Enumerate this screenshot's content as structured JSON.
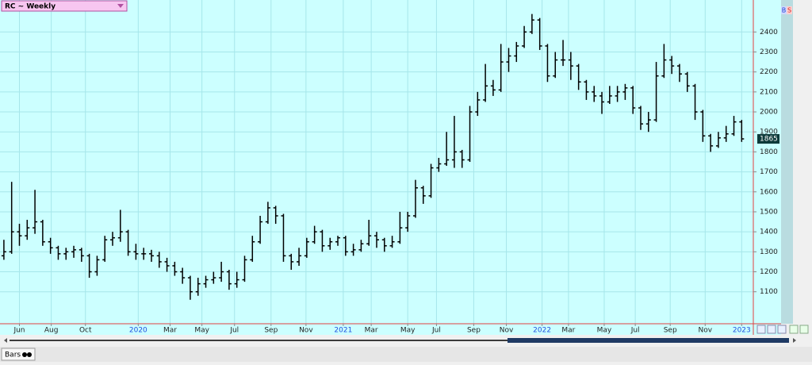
{
  "chart_data": {
    "type": "ohlc",
    "title": "RC ~ Weekly",
    "color": "#000000",
    "grid": true,
    "open": [
      1280,
      1300,
      1400,
      1380,
      1420,
      1450,
      1350,
      1320,
      1290,
      1300,
      1310,
      1280,
      1200,
      1260,
      1360,
      1370,
      1400,
      1300,
      1290,
      1290,
      1280,
      1250,
      1230,
      1200,
      1170,
      1100,
      1140,
      1160,
      1170,
      1200,
      1140,
      1160,
      1260,
      1350,
      1450,
      1520,
      1480,
      1280,
      1250,
      1280,
      1350,
      1400,
      1330,
      1350,
      1370,
      1300,
      1310,
      1340,
      1380,
      1360,
      1330,
      1350,
      1420,
      1480,
      1620,
      1580,
      1720,
      1740,
      1760,
      1800,
      1760,
      2000,
      2060,
      2130,
      2110,
      2250,
      2280,
      2330,
      2400,
      2460,
      2330,
      2180,
      2260,
      2260,
      2230,
      2150,
      2100,
      2080,
      2050,
      2080,
      2100,
      2120,
      2020,
      1940,
      1960,
      2180,
      2260,
      2230,
      2190,
      2130,
      2000,
      1880,
      1830,
      1870,
      1890,
      1950
    ],
    "high": [
      1360,
      1650,
      1440,
      1460,
      1610,
      1460,
      1370,
      1330,
      1320,
      1330,
      1320,
      1290,
      1280,
      1380,
      1400,
      1510,
      1410,
      1340,
      1320,
      1310,
      1300,
      1270,
      1250,
      1220,
      1180,
      1170,
      1180,
      1200,
      1250,
      1210,
      1200,
      1280,
      1380,
      1480,
      1550,
      1530,
      1490,
      1290,
      1320,
      1370,
      1430,
      1410,
      1370,
      1380,
      1380,
      1340,
      1360,
      1460,
      1400,
      1370,
      1380,
      1500,
      1500,
      1660,
      1630,
      1740,
      1770,
      1900,
      1980,
      1810,
      2030,
      2100,
      2240,
      2160,
      2340,
      2320,
      2350,
      2430,
      2490,
      2470,
      2340,
      2300,
      2360,
      2300,
      2240,
      2160,
      2130,
      2100,
      2130,
      2130,
      2140,
      2130,
      2030,
      2000,
      2250,
      2340,
      2280,
      2240,
      2200,
      2140,
      2010,
      1890,
      1900,
      1930,
      1980,
      1960
    ],
    "low": [
      1260,
      1290,
      1330,
      1360,
      1390,
      1330,
      1290,
      1260,
      1260,
      1270,
      1250,
      1170,
      1180,
      1250,
      1330,
      1350,
      1280,
      1260,
      1260,
      1250,
      1220,
      1200,
      1180,
      1140,
      1060,
      1080,
      1120,
      1140,
      1150,
      1110,
      1120,
      1150,
      1250,
      1340,
      1440,
      1440,
      1250,
      1210,
      1230,
      1270,
      1340,
      1300,
      1310,
      1330,
      1280,
      1280,
      1300,
      1330,
      1320,
      1300,
      1320,
      1340,
      1400,
      1470,
      1540,
      1570,
      1700,
      1730,
      1720,
      1720,
      1750,
      1980,
      2050,
      2080,
      2100,
      2200,
      2250,
      2320,
      2390,
      2310,
      2150,
      2170,
      2230,
      2160,
      2110,
      2060,
      2050,
      1990,
      2040,
      2050,
      2060,
      1990,
      1910,
      1900,
      1950,
      2170,
      2190,
      2150,
      2100,
      1960,
      1850,
      1800,
      1820,
      1850,
      1880,
      1850
    ],
    "close": [
      1300,
      1400,
      1380,
      1420,
      1450,
      1350,
      1320,
      1290,
      1300,
      1310,
      1280,
      1200,
      1260,
      1360,
      1370,
      1400,
      1300,
      1290,
      1290,
      1280,
      1250,
      1230,
      1200,
      1170,
      1100,
      1140,
      1160,
      1170,
      1200,
      1140,
      1160,
      1260,
      1350,
      1450,
      1520,
      1480,
      1280,
      1250,
      1280,
      1350,
      1400,
      1330,
      1350,
      1370,
      1300,
      1310,
      1340,
      1380,
      1360,
      1330,
      1350,
      1420,
      1480,
      1620,
      1580,
      1720,
      1740,
      1760,
      1800,
      1760,
      2000,
      2060,
      2130,
      2110,
      2250,
      2280,
      2330,
      2400,
      2460,
      2330,
      2180,
      2260,
      2260,
      2230,
      2150,
      2100,
      2080,
      2050,
      2080,
      2100,
      2120,
      2020,
      1940,
      1960,
      2180,
      2260,
      2230,
      2190,
      2130,
      2000,
      1880,
      1830,
      1870,
      1890,
      1950,
      1865
    ],
    "xlim": [
      -0.5,
      96.5
    ],
    "xticks": [
      {
        "value": 2.0,
        "label": "Jun"
      },
      {
        "value": 6.1,
        "label": "Aug"
      },
      {
        "value": 10.5,
        "label": "Oct"
      },
      {
        "value": 17.3,
        "label": "2020"
      },
      {
        "value": 21.4,
        "label": "Mar"
      },
      {
        "value": 25.5,
        "label": "May"
      },
      {
        "value": 29.7,
        "label": "Jul"
      },
      {
        "value": 34.4,
        "label": "Sep"
      },
      {
        "value": 38.9,
        "label": "Nov"
      },
      {
        "value": 43.7,
        "label": "2021"
      },
      {
        "value": 47.3,
        "label": "Mar"
      },
      {
        "value": 52.0,
        "label": "May"
      },
      {
        "value": 55.7,
        "label": "Jul"
      },
      {
        "value": 60.5,
        "label": "Sep"
      },
      {
        "value": 64.7,
        "label": "Nov"
      },
      {
        "value": 69.3,
        "label": "2022"
      },
      {
        "value": 72.7,
        "label": "Mar"
      },
      {
        "value": 77.3,
        "label": "May"
      },
      {
        "value": 81.3,
        "label": "Jul"
      },
      {
        "value": 85.8,
        "label": "Sep"
      },
      {
        "value": 90.3,
        "label": "Nov"
      },
      {
        "value": 95.0,
        "label": "2023"
      }
    ],
    "ylim": [
      940,
      2560
    ],
    "yticks": [
      1100,
      1200,
      1300,
      1400,
      1500,
      1600,
      1700,
      1800,
      1900,
      2000,
      2100,
      2200,
      2300,
      2400
    ]
  },
  "ui": {
    "buttons": [
      "B",
      "S"
    ],
    "tab": "Bars"
  }
}
